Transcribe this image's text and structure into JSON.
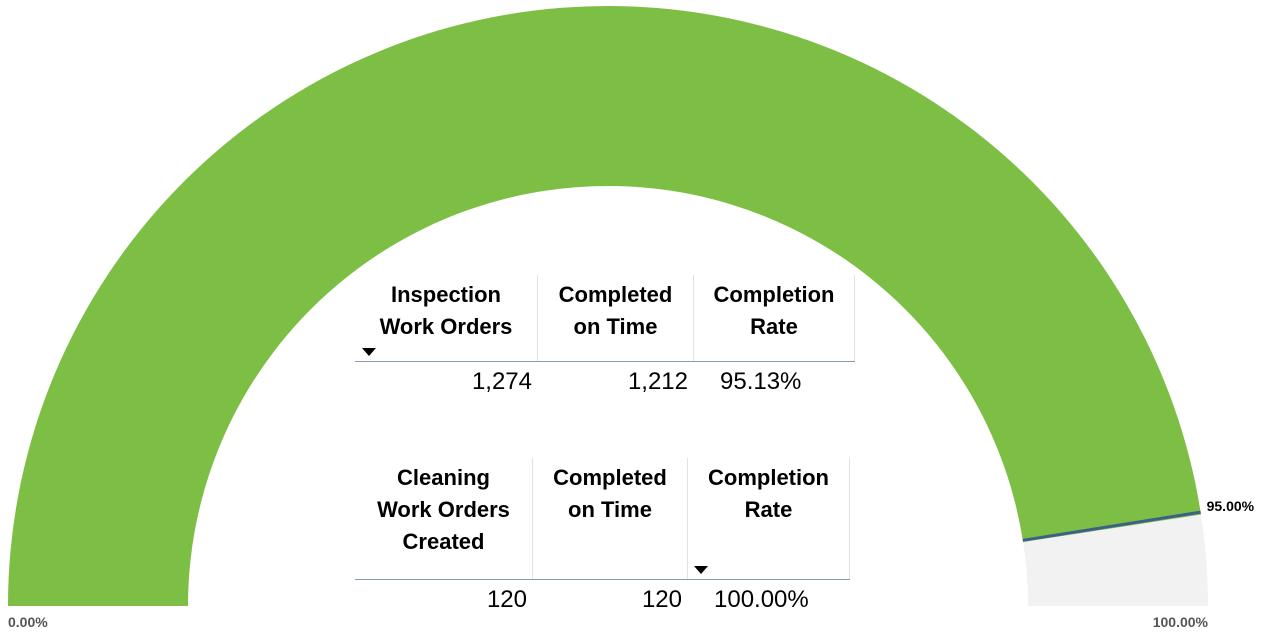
{
  "chart_data": {
    "type": "gauge",
    "value": 95.13,
    "color": "#7cbf44",
    "track_color": "#f2f2f2",
    "min": {
      "value": 0,
      "label": "0.00%"
    },
    "max": {
      "value": 100,
      "label": "100.00%"
    },
    "target": {
      "value": 95,
      "label": "95.00%"
    },
    "target_color": "#3d6186"
  },
  "tables": [
    {
      "headers": [
        [
          "Inspection",
          "Work Orders"
        ],
        [
          "Completed",
          "on Time"
        ],
        [
          "Completion",
          "Rate"
        ]
      ],
      "row": [
        "1,274",
        "1,212",
        "95.13%"
      ]
    },
    {
      "headers": [
        [
          "Cleaning",
          "Work Orders",
          "Created"
        ],
        [
          "Completed",
          "on Time"
        ],
        [
          "Completion",
          "Rate"
        ]
      ],
      "row": [
        "120",
        "120",
        "100.00%"
      ]
    }
  ]
}
